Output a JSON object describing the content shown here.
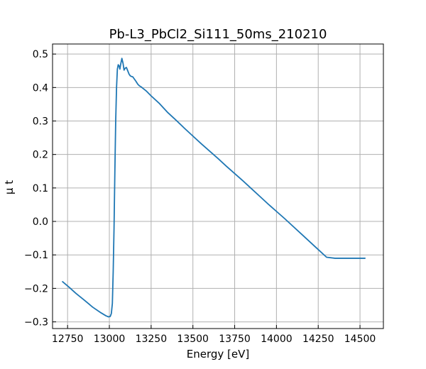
{
  "chart_data": {
    "type": "line",
    "title": "Pb-L3_PbCl2_Si111_50ms_210210",
    "xlabel": "Energy [eV]",
    "ylabel": "μ t",
    "xlim": [
      12660,
      14640
    ],
    "ylim": [
      -0.32,
      0.53
    ],
    "xticks": [
      12750,
      13000,
      13250,
      13500,
      13750,
      14000,
      14250,
      14500
    ],
    "yticks": [
      -0.3,
      -0.2,
      -0.1,
      0.0,
      0.1,
      0.2,
      0.3,
      0.4,
      0.5
    ],
    "xtick_labels": [
      "12750",
      "13000",
      "13250",
      "13500",
      "13750",
      "14000",
      "14250",
      "14500"
    ],
    "ytick_labels": [
      "−0.3",
      "−0.2",
      "−0.1",
      "0.0",
      "0.1",
      "0.2",
      "0.3",
      "0.4",
      "0.5"
    ],
    "grid": true,
    "line_color": "#1f77b4",
    "series": [
      {
        "x": [
          12720,
          12760,
          12800,
          12850,
          12900,
          12950,
          12980,
          12995,
          13005,
          13012,
          13018,
          13023,
          13028,
          13033,
          13038,
          13043,
          13048,
          13053,
          13058,
          13063,
          13068,
          13075,
          13082,
          13088,
          13095,
          13102,
          13110,
          13118,
          13125,
          13132,
          13140,
          13150,
          13160,
          13170,
          13180,
          13190,
          13200,
          13220,
          13250,
          13300,
          13350,
          13400,
          13450,
          13500,
          13550,
          13600,
          13650,
          13700,
          13750,
          13800,
          13850,
          13900,
          13950,
          14000,
          14050,
          14100,
          14150,
          14200,
          14250,
          14300,
          14350,
          14400,
          14450,
          14500,
          14530
        ],
        "y": [
          -0.18,
          -0.197,
          -0.215,
          -0.235,
          -0.256,
          -0.273,
          -0.282,
          -0.285,
          -0.284,
          -0.275,
          -0.245,
          -0.15,
          -0.02,
          0.15,
          0.3,
          0.4,
          0.455,
          0.468,
          0.465,
          0.455,
          0.47,
          0.487,
          0.472,
          0.452,
          0.458,
          0.46,
          0.45,
          0.44,
          0.435,
          0.433,
          0.432,
          0.425,
          0.418,
          0.41,
          0.405,
          0.402,
          0.398,
          0.39,
          0.375,
          0.352,
          0.325,
          0.302,
          0.278,
          0.255,
          0.232,
          0.21,
          0.188,
          0.165,
          0.143,
          0.121,
          0.098,
          0.075,
          0.052,
          0.03,
          0.008,
          -0.015,
          -0.038,
          -0.061,
          -0.084,
          -0.107,
          -0.11,
          -0.11,
          -0.11,
          -0.11,
          -0.11
        ]
      }
    ]
  }
}
